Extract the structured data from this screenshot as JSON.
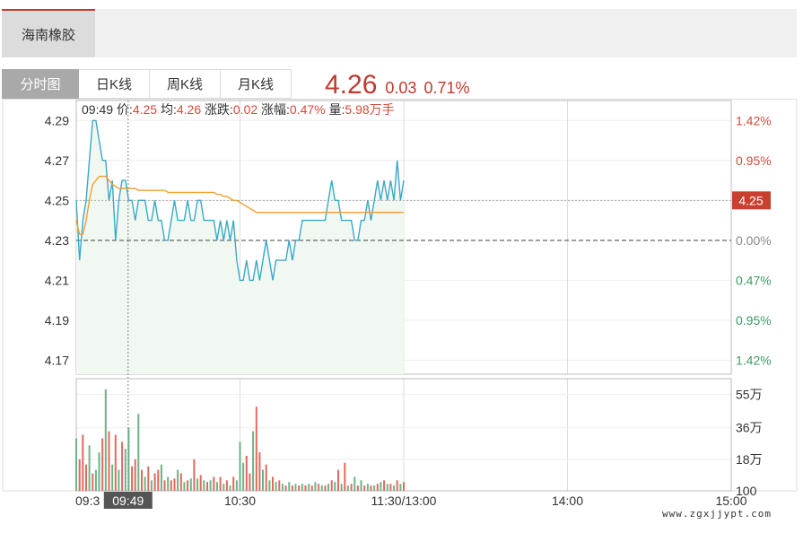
{
  "stock_tab": {
    "label": "海南橡胶"
  },
  "tabs": [
    {
      "label": "分时图",
      "active": true
    },
    {
      "label": "日K线",
      "active": false
    },
    {
      "label": "周K线",
      "active": false
    },
    {
      "label": "月K线",
      "active": false
    }
  ],
  "quote": {
    "price": "4.26",
    "change": "0.03",
    "change_pct": "0.71%",
    "color": "#c0392b"
  },
  "info_bar": {
    "time": "09:49",
    "price_label": "价:",
    "price": "4.25",
    "avg_label": "均:",
    "avg": "4.26",
    "change_label": "涨跌:",
    "change": "0.02",
    "pct_label": "涨幅:",
    "pct": "0.47%",
    "vol_label": "量:",
    "vol": "5.98万手"
  },
  "watermark": "www.zgxjjypt.com",
  "chart_data": {
    "type": "line",
    "prev_close": 4.23,
    "y_ticks": [
      "4.29",
      "4.27",
      "4.25",
      "4.23",
      "4.21",
      "4.19",
      "4.17"
    ],
    "y_tick_values": [
      4.29,
      4.27,
      4.25,
      4.23,
      4.21,
      4.19,
      4.17
    ],
    "pct_ticks": [
      "1.42%",
      "0.95%",
      "0.47%",
      "0.00%",
      "0.47%",
      "0.95%",
      "1.42%"
    ],
    "x_ticks": [
      "09:3",
      "10:30",
      "11:30/13:00",
      "14:00",
      "15:00"
    ],
    "x_tick_minutes": [
      0,
      60,
      120,
      180,
      240
    ],
    "crosshair": {
      "time_label": "09:49",
      "minute": 19,
      "price_label": "4.25",
      "price": 4.25
    },
    "vol_ticks": [
      "55万",
      "36万",
      "18万",
      "100"
    ],
    "vol_tick_values": [
      55,
      36,
      18,
      0
    ],
    "colors": {
      "price": "#3aa9c9",
      "avg": "#f0a030",
      "up": "#e06a5e",
      "down": "#6cb389",
      "fill": "#f1f7f1",
      "red_text": "#d64a3a",
      "green_text": "#3b9c61"
    },
    "series": [
      {
        "name": "价",
        "values": [
          4.25,
          4.22,
          4.24,
          4.25,
          4.27,
          4.29,
          4.29,
          4.28,
          4.27,
          4.27,
          4.25,
          4.26,
          4.23,
          4.25,
          4.26,
          4.26,
          4.25,
          4.25,
          4.24,
          4.25,
          4.25,
          4.25,
          4.24,
          4.24,
          4.25,
          4.24,
          4.24,
          4.23,
          4.23,
          4.24,
          4.25,
          4.24,
          4.24,
          4.24,
          4.25,
          4.24,
          4.24,
          4.25,
          4.25,
          4.24,
          4.24,
          4.24,
          4.24,
          4.23,
          4.24,
          4.23,
          4.24,
          4.23,
          4.24,
          4.22,
          4.21,
          4.21,
          4.22,
          4.21,
          4.21,
          4.22,
          4.21,
          4.22,
          4.23,
          4.22,
          4.21,
          4.22,
          4.22,
          4.22,
          4.22,
          4.23,
          4.22,
          4.23,
          4.23,
          4.24,
          4.24,
          4.24,
          4.24,
          4.24,
          4.24,
          4.24,
          4.24,
          4.25,
          4.26,
          4.25,
          4.25,
          4.24,
          4.24,
          4.24,
          4.24,
          4.23,
          4.23,
          4.24,
          4.24,
          4.25,
          4.24,
          4.25,
          4.26,
          4.25,
          4.26,
          4.25,
          4.26,
          4.25,
          4.27,
          4.25,
          4.26
        ]
      },
      {
        "name": "均",
        "values": [
          4.24,
          4.233,
          4.233,
          4.24,
          4.25,
          4.258,
          4.26,
          4.262,
          4.262,
          4.262,
          4.26,
          4.258,
          4.257,
          4.256,
          4.256,
          4.256,
          4.256,
          4.256,
          4.256,
          4.255,
          4.255,
          4.255,
          4.255,
          4.255,
          4.255,
          4.255,
          4.255,
          4.255,
          4.254,
          4.254,
          4.254,
          4.254,
          4.254,
          4.254,
          4.254,
          4.254,
          4.254,
          4.254,
          4.254,
          4.254,
          4.254,
          4.254,
          4.254,
          4.253,
          4.253,
          4.252,
          4.252,
          4.251,
          4.25,
          4.25,
          4.249,
          4.248,
          4.247,
          4.246,
          4.245,
          4.244,
          4.244,
          4.244,
          4.244,
          4.244,
          4.244,
          4.244,
          4.244,
          4.244,
          4.244,
          4.244,
          4.244,
          4.244,
          4.244,
          4.244,
          4.244,
          4.244,
          4.244,
          4.244,
          4.244,
          4.244,
          4.244,
          4.244,
          4.244,
          4.244,
          4.244,
          4.244,
          4.244,
          4.244,
          4.244,
          4.244,
          4.244,
          4.244,
          4.244,
          4.244,
          4.244,
          4.244,
          4.244,
          4.244,
          4.244,
          4.244,
          4.244,
          4.244,
          4.244,
          4.244,
          4.244
        ]
      }
    ],
    "volume": [
      30,
      18,
      32,
      15,
      26,
      10,
      12,
      22,
      30,
      58,
      34,
      15,
      32,
      12,
      28,
      24,
      36,
      14,
      18,
      44,
      12,
      8,
      14,
      6,
      10,
      12,
      15,
      6,
      8,
      6,
      7,
      12,
      10,
      5,
      6,
      7,
      18,
      7,
      9,
      6,
      5,
      6,
      8,
      5,
      8,
      4,
      6,
      3,
      8,
      6,
      28,
      16,
      20,
      10,
      34,
      48,
      22,
      12,
      15,
      6,
      8,
      5,
      6,
      4,
      3,
      5,
      3,
      4,
      3,
      4,
      3,
      4,
      3,
      5,
      4,
      3,
      3,
      4,
      6,
      5,
      12,
      4,
      16,
      3,
      4,
      8,
      3,
      6,
      3,
      4,
      3,
      3,
      4,
      5,
      6,
      4,
      4,
      3,
      6,
      4,
      5
    ],
    "volume_up": [
      false,
      true,
      true,
      true,
      false,
      true,
      false,
      false,
      true,
      false,
      true,
      false,
      true,
      false,
      true,
      false,
      false,
      true,
      true,
      false,
      true,
      false,
      true,
      false,
      true,
      true,
      false,
      true,
      false,
      true,
      true,
      false,
      true,
      false,
      true,
      false,
      true,
      false,
      true,
      false,
      true,
      false,
      true,
      false,
      true,
      false,
      true,
      false,
      true,
      false,
      false,
      false,
      true,
      true,
      false,
      true,
      true,
      false,
      true,
      false,
      true,
      false,
      true,
      false,
      true,
      false,
      true,
      false,
      true,
      false,
      true,
      false,
      true,
      false,
      true,
      false,
      true,
      false,
      true,
      false,
      true,
      false,
      true,
      false,
      true,
      false,
      true,
      false,
      true,
      false,
      true,
      false,
      true,
      false,
      true,
      false,
      true,
      false,
      true,
      false,
      true
    ]
  }
}
